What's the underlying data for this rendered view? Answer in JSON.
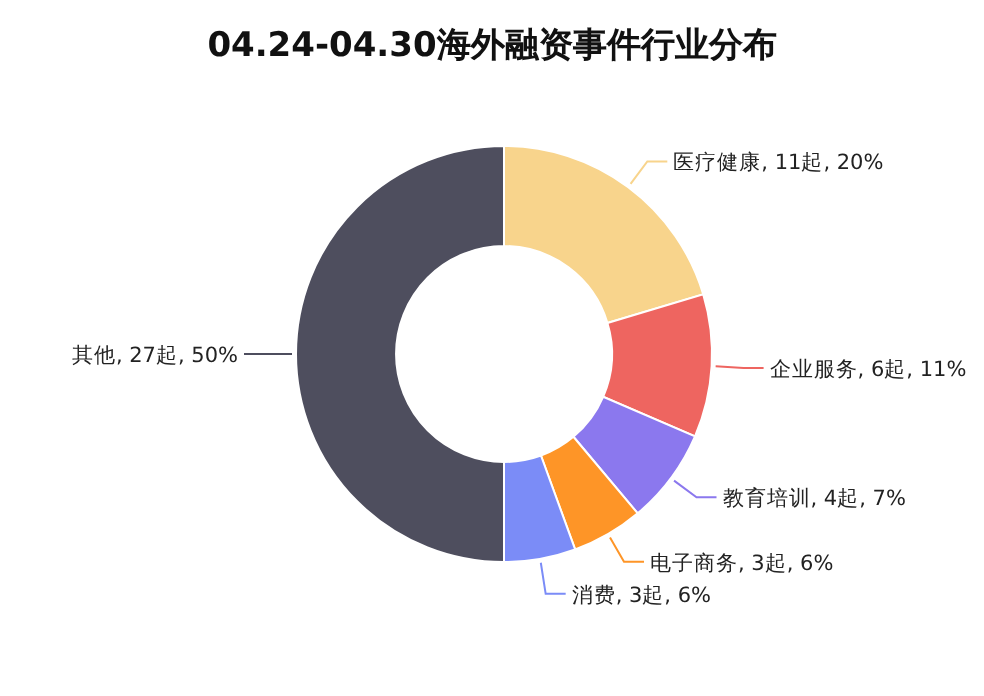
{
  "chart_data": {
    "type": "donut",
    "title": "04.24-04.30海外融资事件行业分布",
    "categories": [
      "医疗健康",
      "企业服务",
      "教育培训",
      "电子商务",
      "消费",
      "其他"
    ],
    "values": [
      11,
      6,
      4,
      3,
      3,
      27
    ],
    "value_labels": [
      "11起, 20%",
      "6起, 11%",
      "4起, 7%",
      "3起, 6%",
      "3起, 6%",
      "27起, 50%"
    ],
    "colors": [
      "#f8d48c",
      "#ee6560",
      "#8b78ee",
      "#fe9527",
      "#7b8cf7",
      "#4e4e5e"
    ]
  }
}
